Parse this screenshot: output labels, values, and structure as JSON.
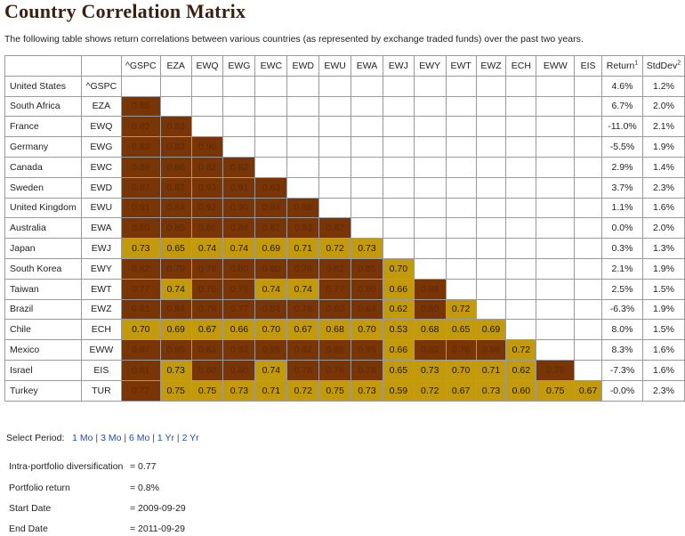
{
  "title": "Country Correlation Matrix",
  "description": "The following table shows return correlations between various countries (as represented by exchange traded funds) over the past two years.",
  "colors": {
    "dark": "#7a3506",
    "gold": "#c39a0c",
    "link": "#1c4eb3"
  },
  "matrix": {
    "columns": [
      "^GSPC",
      "EZA",
      "EWQ",
      "EWG",
      "EWC",
      "EWD",
      "EWU",
      "EWA",
      "EWJ",
      "EWY",
      "EWT",
      "EWZ",
      "ECH",
      "EWW",
      "EIS"
    ],
    "return_label": "Return",
    "return_sup": "1",
    "stddev_label": "StdDev",
    "stddev_sup": "2",
    "rows": [
      {
        "country": "United States",
        "ticker": "^GSPC",
        "return": "4.6%",
        "stddev": "1.2%",
        "values": [],
        "shade": []
      },
      {
        "country": "South Africa",
        "ticker": "EZA",
        "return": "6.7%",
        "stddev": "2.0%",
        "values": [
          "0.85"
        ],
        "shade": [
          "d"
        ]
      },
      {
        "country": "France",
        "ticker": "EWQ",
        "return": "-11.0%",
        "stddev": "2.1%",
        "values": [
          "0.83",
          "0.83"
        ],
        "shade": [
          "d",
          "d"
        ]
      },
      {
        "country": "Germany",
        "ticker": "EWG",
        "return": "-5.5%",
        "stddev": "1.9%",
        "values": [
          "0.83",
          "0.82",
          "0.96"
        ],
        "shade": [
          "d",
          "d",
          "d"
        ]
      },
      {
        "country": "Canada",
        "ticker": "EWC",
        "return": "2.9%",
        "stddev": "1.4%",
        "values": [
          "0.86",
          "0.86",
          "0.82",
          "0.82"
        ],
        "shade": [
          "d",
          "d",
          "d",
          "d"
        ]
      },
      {
        "country": "Sweden",
        "ticker": "EWD",
        "return": "3.7%",
        "stddev": "2.3%",
        "values": [
          "0.87",
          "0.82",
          "0.93",
          "0.91",
          "0.83"
        ],
        "shade": [
          "d",
          "d",
          "d",
          "d",
          "d"
        ]
      },
      {
        "country": "United Kingdom",
        "ticker": "EWU",
        "return": "1.1%",
        "stddev": "1.6%",
        "values": [
          "0.91",
          "0.84",
          "0.92",
          "0.90",
          "0.84",
          "0.88"
        ],
        "shade": [
          "d",
          "d",
          "d",
          "d",
          "d",
          "d"
        ]
      },
      {
        "country": "Australia",
        "ticker": "EWA",
        "return": "0.0%",
        "stddev": "2.0%",
        "values": [
          "0.89",
          "0.85",
          "0.86",
          "0.84",
          "0.87",
          "0.83",
          "0.87"
        ],
        "shade": [
          "d",
          "d",
          "d",
          "d",
          "d",
          "d",
          "d"
        ]
      },
      {
        "country": "Japan",
        "ticker": "EWJ",
        "return": "0.3%",
        "stddev": "1.3%",
        "values": [
          "0.73",
          "0.65",
          "0.74",
          "0.74",
          "0.69",
          "0.71",
          "0.72",
          "0.73"
        ],
        "shade": [
          "g",
          "g",
          "g",
          "g",
          "g",
          "g",
          "g",
          "g"
        ]
      },
      {
        "country": "South Korea",
        "ticker": "EWY",
        "return": "2.1%",
        "stddev": "1.9%",
        "values": [
          "0.82",
          "0.79",
          "0.78",
          "0.80",
          "0.80",
          "0.78",
          "0.82",
          "0.85",
          "0.70"
        ],
        "shade": [
          "d",
          "d",
          "d",
          "d",
          "d",
          "d",
          "d",
          "d",
          "g"
        ]
      },
      {
        "country": "Taiwan",
        "ticker": "EWT",
        "return": "2.5%",
        "stddev": "1.5%",
        "values": [
          "0.77",
          "0.74",
          "0.75",
          "0.75",
          "0.74",
          "0.74",
          "0.77",
          "0.80",
          "0.66",
          "0.88"
        ],
        "shade": [
          "d",
          "g",
          "d",
          "d",
          "g",
          "g",
          "d",
          "d",
          "g",
          "d"
        ]
      },
      {
        "country": "Brazil",
        "ticker": "EWZ",
        "return": "-6.3%",
        "stddev": "1.9%",
        "values": [
          "0.81",
          "0.84",
          "0.78",
          "0.77",
          "0.84",
          "0.78",
          "0.80",
          "0.84",
          "0.62",
          "0.80",
          "0.72"
        ],
        "shade": [
          "d",
          "d",
          "d",
          "d",
          "d",
          "d",
          "d",
          "d",
          "g",
          "d",
          "g"
        ]
      },
      {
        "country": "Chile",
        "ticker": "ECH",
        "return": "8.0%",
        "stddev": "1.5%",
        "values": [
          "0.70",
          "0.69",
          "0.67",
          "0.66",
          "0.70",
          "0.67",
          "0.68",
          "0.70",
          "0.53",
          "0.68",
          "0.65",
          "0.69"
        ],
        "shade": [
          "g",
          "g",
          "g",
          "g",
          "g",
          "g",
          "g",
          "g",
          "g",
          "g",
          "g",
          "g"
        ]
      },
      {
        "country": "Mexico",
        "ticker": "EWW",
        "return": "8.3%",
        "stddev": "1.6%",
        "values": [
          "0.87",
          "0.85",
          "0.83",
          "0.82",
          "0.85",
          "0.82",
          "0.85",
          "0.85",
          "0.66",
          "0.82",
          "0.76",
          "0.86",
          "0.72"
        ],
        "shade": [
          "d",
          "d",
          "d",
          "d",
          "d",
          "d",
          "d",
          "d",
          "g",
          "d",
          "d",
          "d",
          "g"
        ]
      },
      {
        "country": "Israel",
        "ticker": "EIS",
        "return": "-7.3%",
        "stddev": "1.6%",
        "values": [
          "0.81",
          "0.73",
          "0.80",
          "0.80",
          "0.74",
          "0.78",
          "0.76",
          "0.78",
          "0.65",
          "0.73",
          "0.70",
          "0.71",
          "0.62",
          "0.76"
        ],
        "shade": [
          "d",
          "g",
          "d",
          "d",
          "g",
          "d",
          "d",
          "d",
          "g",
          "g",
          "g",
          "g",
          "g",
          "d"
        ]
      },
      {
        "country": "Turkey",
        "ticker": "TUR",
        "return": "-0.0%",
        "stddev": "2.3%",
        "values": [
          "0.77",
          "0.75",
          "0.75",
          "0.73",
          "0.71",
          "0.72",
          "0.75",
          "0.73",
          "0.59",
          "0.72",
          "0.67",
          "0.73",
          "0.60",
          "0.75",
          "0.67"
        ],
        "shade": [
          "d",
          "g",
          "g",
          "g",
          "g",
          "g",
          "g",
          "g",
          "g",
          "g",
          "g",
          "g",
          "g",
          "g",
          "g"
        ]
      }
    ]
  },
  "period": {
    "label": "Select Period:",
    "options": [
      "1 Mo",
      "3 Mo",
      "6 Mo",
      "1 Yr",
      "2 Yr"
    ]
  },
  "stats": [
    {
      "label": "Intra-portfolio diversification",
      "value": "= 0.77"
    },
    {
      "label": "Portfolio return",
      "value": "= 0.8%"
    },
    {
      "label": "Start Date",
      "value": "= 2009-09-29"
    },
    {
      "label": "End Date",
      "value": "= 2011-09-29"
    }
  ]
}
